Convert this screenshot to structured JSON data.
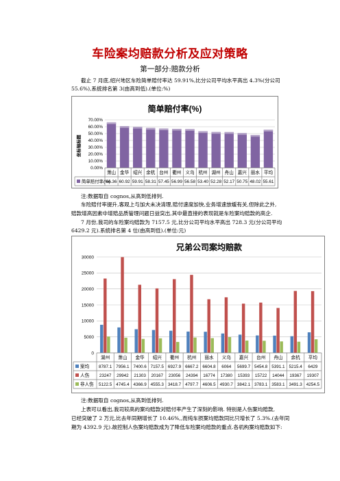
{
  "doc": {
    "title": "车险案均赔款分析及应对策略",
    "subtitle": "第一部分:赔款分析",
    "para1_line1": "截止  7 月底,绍兴地区车险简单赔付率达  59.91%,比分公司平均水平高出  4.3%(分公司",
    "para1_line2": "55.6%),系统排名第 3(由高到低).(单位:%)",
    "note1": "注:数据取自 cognos,从高到低排列.",
    "para2_line1": "车险赔付率提升,客观上与加大未决清理,赔付速度加快,业务增速放缓有关,但除此之外,",
    "para2_line2": "赔款增高因素中增赔品质管理问题日益突出,其中最直接的表现就是车险案均赔款的高企.",
    "para3_line1": "7 月份,我司的车险案均赔款为  7157.5  元,比分公司平均水平高出  728.3  元(分公司平均",
    "para3_line2": "6429.2 元).系统排名第 4 位(由高到低).(单位:元)",
    "note2": "注:数据取自 cognos,从高到低排列.",
    "para4_line1": "上表可以看出,我司较高的案均赔款对赔付率产生了深刻的影响.  特别是人伤案均赔款,",
    "para4_line2": "已经突破了 2 万元,比去年同期增长了 10.46%,,而纯车损案均赔款同比只增长了 5.3%.(去年同",
    "para4_line3": "期为 4392.9 元).故控制人伤案均赔款成为了降低车险案均赔款的重点.各机构案均赔款如下:"
  },
  "chart_data": [
    {
      "type": "bar",
      "title": "简单赔付率(%)",
      "ylabel": "坐标轴标题",
      "categories": [
        "萧山",
        "金华",
        "绍兴",
        "余杭",
        "台州",
        "衢州",
        "义乌",
        "杭州",
        "湖州",
        "舟山",
        "嘉兴",
        "丽水",
        "平均"
      ],
      "series": [
        {
          "name": "简单赔付率(%)",
          "values": [
            66.36,
            60.92,
            59.91,
            58.31,
            57.45,
            56.99,
            56.58,
            53.4,
            52.28,
            52.17,
            50.75,
            48.02,
            55.61
          ]
        }
      ],
      "value_labels": [
        "66.36",
        "60.92",
        "59.91",
        "58.31",
        "57.45",
        "56.99",
        "56.58",
        "53.40",
        "52.28",
        "52.17",
        "50.75",
        "48.02",
        "55.61"
      ],
      "ylim": [
        0,
        70
      ],
      "yticks": [
        "0.00%",
        "10.00%",
        "20.00%",
        "30.00%",
        "40.00%",
        "50.00%",
        "60.00%",
        "70.00%"
      ],
      "grid": true,
      "legend": "data-table",
      "colors": {
        "bar": "#8064a2"
      }
    },
    {
      "type": "bar",
      "title": "兄弟公司案均赔款",
      "categories": [
        "湖州",
        "萧山",
        "金华",
        "绍兴",
        "衢州",
        "杭州",
        "丽水",
        "义乌",
        "嘉兴",
        "台州",
        "舟山",
        "余杭",
        "平均"
      ],
      "series": [
        {
          "name": "案均",
          "values": [
            8787.1,
            7956.1,
            7400.6,
            7157.5,
            6927.9,
            6667.2,
            6604.8,
            6064,
            5699.7,
            5454.8,
            5391.1,
            5215.4,
            6429
          ],
          "color": "#4f81bd",
          "labels": [
            "8787.1",
            "7956.1",
            "7400.6",
            "7157.5",
            "6927.9",
            "6667.2",
            "6604.8",
            "6064",
            "5699.7",
            "5454.8",
            "5391.1",
            "5215.4",
            "6429"
          ]
        },
        {
          "name": "人伤",
          "values": [
            23247,
            29942,
            21303,
            20167,
            23056,
            24394,
            16774,
            17380,
            15393,
            15722,
            14044,
            19367,
            19307
          ],
          "color": "#c0504d",
          "labels": [
            "23247",
            "29942",
            "21303",
            "20167",
            "23056",
            "24394",
            "16774",
            "17380",
            "15393",
            "15722",
            "14044",
            "19367",
            "19307"
          ]
        },
        {
          "name": "非人伤",
          "values": [
            5122.5,
            4745.4,
            4366.9,
            4555.3,
            3418.7,
            4797.7,
            4606.5,
            4930.7,
            3842.1,
            3783.1,
            3583.1,
            3491.3,
            4254.5
          ],
          "color": "#9bbb59",
          "labels": [
            "5122.5",
            "4745.4",
            "4366.9",
            "4555.3",
            "3418.7",
            "4797.7",
            "4606.5",
            "4930.7",
            "3842.1",
            "3783.1",
            "3583.1",
            "3491.3",
            "4254.5"
          ]
        }
      ],
      "ylim": [
        0,
        30000
      ],
      "yticks": [
        "0",
        "5000",
        "10000",
        "15000",
        "20000",
        "25000",
        "30000"
      ],
      "grid": true,
      "legend": "data-table"
    }
  ]
}
